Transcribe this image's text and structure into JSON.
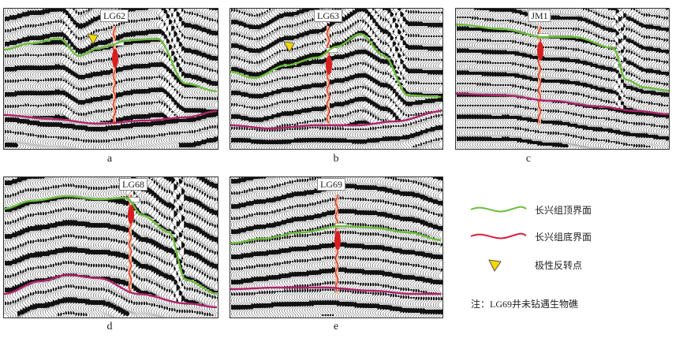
{
  "panels": [
    {
      "letter": "a",
      "well": "LG62",
      "reversal": true
    },
    {
      "letter": "b",
      "well": "LG63",
      "reversal": true
    },
    {
      "letter": "c",
      "well": "JM1",
      "reversal": false
    },
    {
      "letter": "d",
      "well": "LG68",
      "reversal": false
    },
    {
      "letter": "e",
      "well": "LG69",
      "reversal": false
    }
  ],
  "legend": {
    "top": "长兴组顶界面",
    "bottom": "长兴组底界面",
    "reversal": "极性反转点"
  },
  "note": "注：LG69井未钻遇生物礁",
  "colors": {
    "top_horizon": "#6cbd3c",
    "bottom_horizon": "#b0246a",
    "reversal_marker": "#f5d800",
    "well_red": "#d81e1e"
  }
}
